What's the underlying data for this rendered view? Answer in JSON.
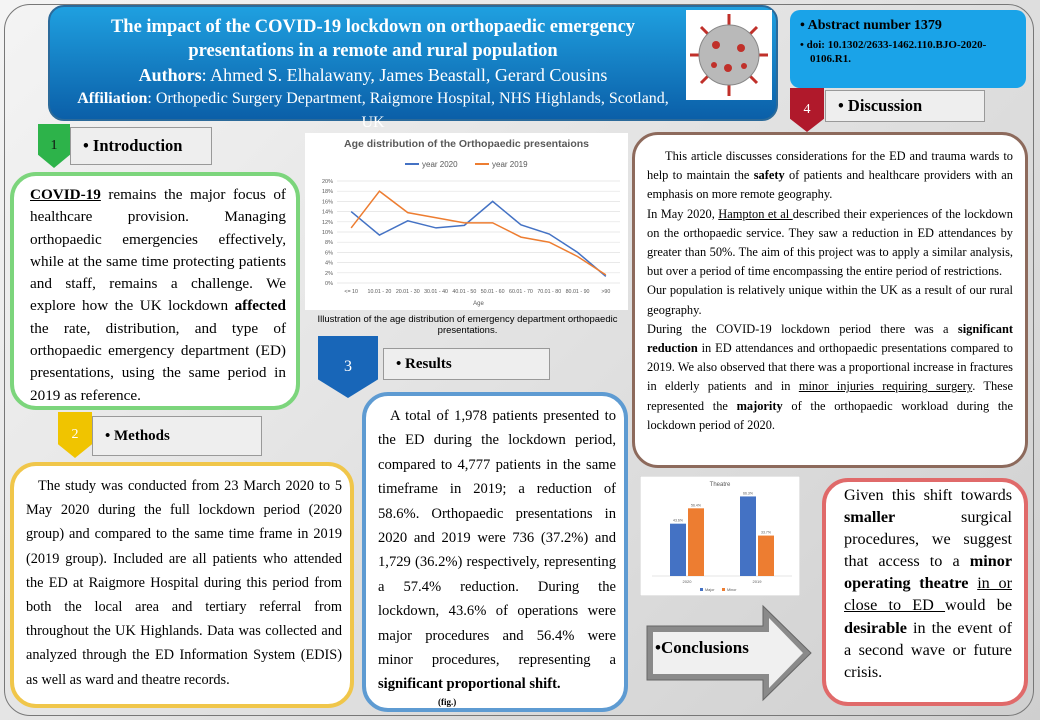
{
  "header": {
    "title": "The impact of the COVID-19 lockdown on orthopaedic emergency presentations in a remote and rural population",
    "authors_label": "Authors",
    "authors": ": Ahmed S. Elhalawany, James Beastall, Gerard Cousins",
    "affiliation_label": "Affiliation",
    "affiliation": ": Orthopedic Surgery Department, Raigmore Hospital, NHS Highlands, Scotland, UK"
  },
  "abstract": {
    "items": [
      "Abstract number 1379",
      "doi: 10.1302/2633-1462.110.BJO-2020-0106.R1."
    ]
  },
  "introduction": {
    "number": "1",
    "heading": "Introduction",
    "paragraphs": [
      [
        {
          "text": "COVID-19",
          "bold": true,
          "underline": true
        },
        " remains the major focus of healthcare provision. Managing orthopaedic emergencies effectively, while at the same time protecting patients and staff, remains a challenge. We explore how the UK lockdown ",
        {
          "text": "affected",
          "bold": true
        },
        " the rate, distribution, and type of orthopaedic emergency department (ED) presentations, using the same period in 2019 as reference."
      ]
    ]
  },
  "methods": {
    "number": "2",
    "heading": "Methods",
    "paragraphs": [
      [
        "The study was conducted from 23 March 2020 to 5 May 2020 during the full lockdown period (2020 group) and compared to the same time frame in 2019 (2019 group). Included are all patients who attended the ED at Raigmore Hospital during this period from both the local area and tertiary referral from throughout the UK Highlands. Data was collected and analyzed through the ED Information System (EDIS) as well as ward and theatre records."
      ]
    ]
  },
  "results": {
    "number": "3",
    "heading": "Results",
    "paragraphs": [
      [
        "A total of 1,978 patients presented to the ED during the lockdown period, compared to 4,777 patients in the same timeframe in 2019; a reduction of 58.6%. Orthopaedic presentations in 2020 and 2019 were 736 (37.2%) and 1,729 (36.2%) respectively, representing a 57.4% reduction. During the lockdown, 43.6% of operations were major procedures and 56.4% were minor procedures, representing a ",
        {
          "text": "significant proportional shift.",
          "bold": true
        }
      ]
    ],
    "fig_note": "(fig.)"
  },
  "discussion": {
    "number": "4",
    "heading": "Discussion",
    "paragraphs": [
      [
        "This article discusses considerations for the ED and trauma wards to help to maintain the ",
        {
          "text": "safety",
          "bold": true
        },
        " of patients and healthcare providers with an emphasis on more remote geography."
      ],
      [
        "In May 2020, ",
        {
          "text": "Hampton et al ",
          "underline": true
        },
        "described their experiences of the lockdown on the orthopaedic service. They saw a reduction in ED attendances by greater than 50%. The aim of this project was to apply a similar analysis, but over a period of time encompassing the entire period of restrictions."
      ],
      [
        "Our population is relatively unique within the UK as a result of our rural geography."
      ],
      [
        "During the COVID-19 lockdown period there was a ",
        {
          "text": "significant reduction",
          "bold": true
        },
        " in ED attendances and orthopaedic presentations compared to 2019. We also observed that there was a proportional increase in fractures in elderly patients and in ",
        {
          "text": "minor injuries requiring surgery",
          "underline": true
        },
        ". These represented the ",
        {
          "text": "majority",
          "bold": true
        },
        " of the orthopaedic workload during the lockdown period of 2020."
      ]
    ]
  },
  "conclusions": {
    "heading": "•Conclusions",
    "paragraphs": [
      [
        "Given this shift towards ",
        {
          "text": "smaller",
          "bold": true
        },
        " surgical procedures, we suggest that access to a ",
        {
          "text": "minor operating theatre",
          "bold": true
        },
        " ",
        {
          "text": "in or close to ED ",
          "underline": true
        },
        "would be ",
        {
          "text": "desirable",
          "bold": true
        },
        " in the event of a second wave or future crisis."
      ]
    ]
  },
  "chart_data": [
    {
      "type": "line",
      "title": "Age distribution of the Orthopaedic presentaions",
      "x_label": "Age",
      "caption": "Illustration of the age distribution of emergency department orthopaedic presentations.",
      "categories": [
        "<= 10",
        "10.01 - 20",
        "20.01 - 30",
        "30.01 - 40",
        "40.01 - 50",
        "50.01 - 60",
        "60.01 - 70",
        "70.01 - 80",
        "80.01 - 90",
        ">90"
      ],
      "series": [
        {
          "name": "year 2020",
          "color": "#4472c4",
          "values": [
            14,
            9.4,
            12.2,
            10.8,
            11.3,
            16,
            11.4,
            9.6,
            6,
            1.3
          ]
        },
        {
          "name": "year 2019",
          "color": "#ed7d31",
          "values": [
            10.8,
            18,
            13.8,
            12.8,
            11.8,
            11.8,
            9,
            8,
            5.2,
            1.6
          ]
        }
      ],
      "ylim": [
        0,
        20
      ],
      "yticks": [
        {
          "value": 0,
          "label": "0%"
        },
        {
          "value": 2,
          "label": "2%"
        },
        {
          "value": 4,
          "label": "4%"
        },
        {
          "value": 6,
          "label": "6%"
        },
        {
          "value": 8,
          "label": "8%"
        },
        {
          "value": 10,
          "label": "10%"
        },
        {
          "value": 12,
          "label": "12%"
        },
        {
          "value": 14,
          "label": "14%"
        },
        {
          "value": 16,
          "label": "16%"
        },
        {
          "value": 18,
          "label": "18%"
        },
        {
          "value": 20,
          "label": "20%"
        }
      ],
      "grid": true
    },
    {
      "type": "bar",
      "title": "Theatre",
      "categories": [
        "2020",
        "2019"
      ],
      "series": [
        {
          "name": "Major",
          "color": "#4472c4",
          "values": [
            43.6,
            66.3
          ],
          "value_labels": [
            "43.6%",
            "66.3%"
          ]
        },
        {
          "name": "Minor",
          "color": "#ed7d31",
          "values": [
            56.4,
            33.7
          ],
          "value_labels": [
            "56.4%",
            "33.7%"
          ]
        }
      ],
      "ylim": [
        0,
        70
      ]
    }
  ]
}
